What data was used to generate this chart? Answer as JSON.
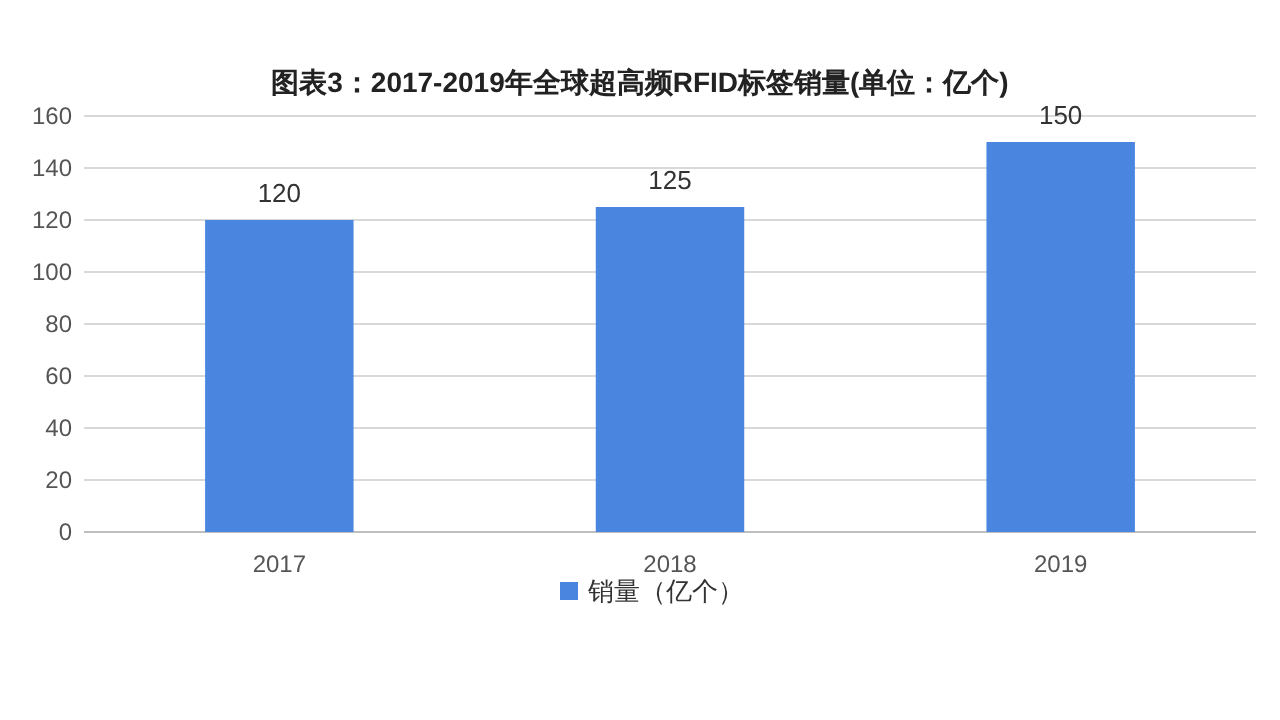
{
  "chart_data": {
    "type": "bar",
    "title": "图表3：2017-2019年全球超高频RFID标签销量(单位：亿个)",
    "categories": [
      "2017",
      "2018",
      "2019"
    ],
    "series": [
      {
        "name": "销量（亿个）",
        "color": "#4a86e0",
        "values": [
          120,
          125,
          150
        ]
      }
    ],
    "ylim": [
      0,
      160
    ],
    "yticks": [
      0,
      20,
      40,
      60,
      80,
      100,
      120,
      140,
      160
    ],
    "grid": "y",
    "legend": "bottom",
    "data_labels": true
  }
}
